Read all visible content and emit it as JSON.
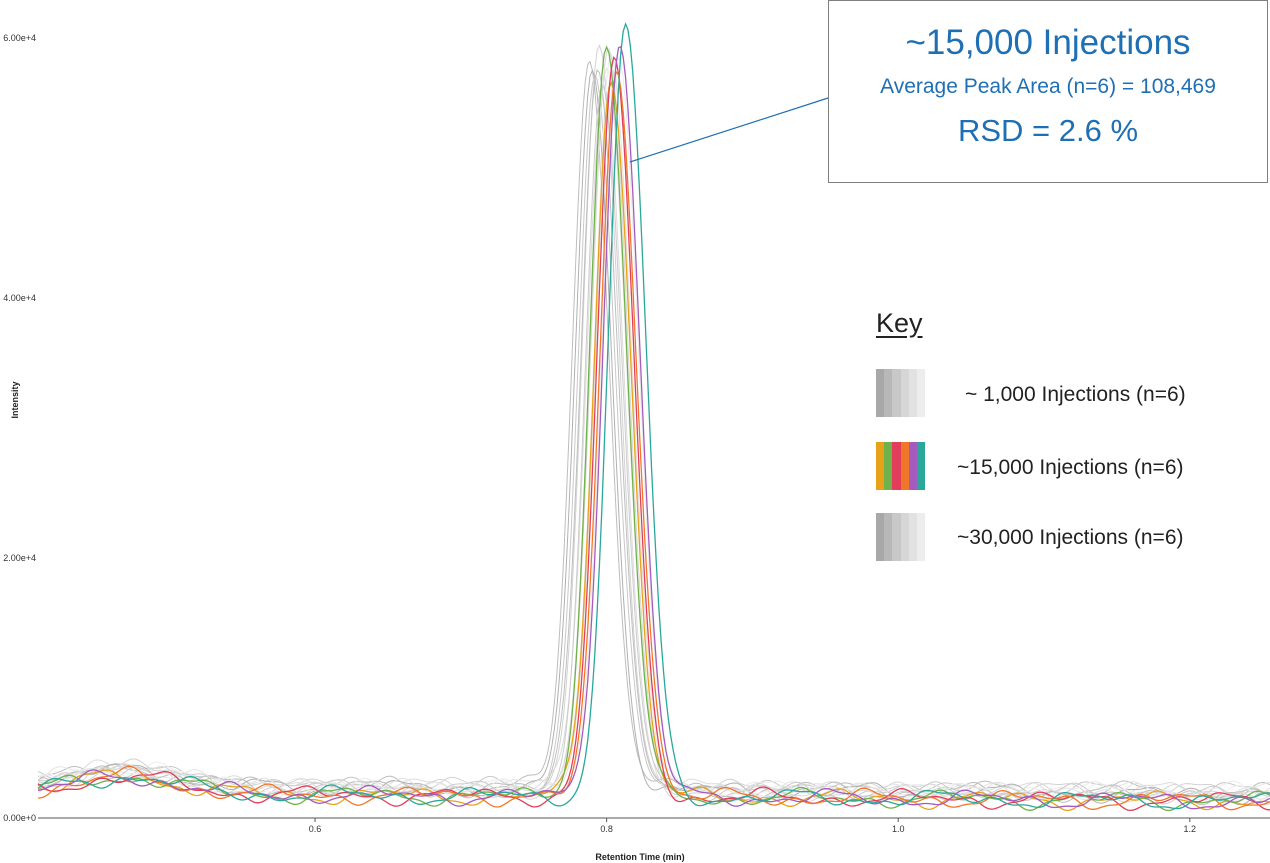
{
  "chart_data": {
    "type": "line",
    "title": "",
    "xlabel": "Retention Time (min)",
    "ylabel": "Intensity",
    "xlim": [
      0.41,
      1.255
    ],
    "ylim": [
      0,
      60000
    ],
    "x_ticks": [
      0.6,
      0.8,
      1.0,
      1.2
    ],
    "x_tick_labels": [
      "0.6",
      "0.8",
      "1.0",
      "1.2"
    ],
    "y_ticks": [
      0,
      20000,
      40000,
      60000
    ],
    "y_tick_labels": [
      "0.00e+0",
      "2.00e+4",
      "4.00e+4",
      "6.00e+4"
    ],
    "grid": false,
    "legend_position": "right",
    "groups": [
      {
        "name": "~ 1,000 Injections (n=6)",
        "colors": [
          "#bdbdbd",
          "#c8c8c8",
          "#d2d2d2",
          "#dcdcdc",
          "#e4e4e4",
          "#ececec"
        ],
        "peak_centers": [
          0.788,
          0.792,
          0.795,
          0.798,
          0.8,
          0.803
        ],
        "peak_heights": [
          56000,
          55000,
          56500,
          54500,
          55500,
          56000
        ],
        "baseline": 2600
      },
      {
        "name": "~15,000 Injections (n=6)",
        "colors": [
          "#e8a21a",
          "#6fb24b",
          "#e23d5a",
          "#f0772a",
          "#a35bc0",
          "#2aa79b"
        ],
        "peak_centers": [
          0.803,
          0.8,
          0.805,
          0.807,
          0.809,
          0.813
        ],
        "peak_heights": [
          55500,
          57800,
          56500,
          55800,
          58000,
          59500
        ],
        "baseline": 1900
      },
      {
        "name": "~30,000 Injections (n=6)",
        "colors": [
          "#b0b0b0",
          "#bebebe",
          "#cbcbcb",
          "#d7d7d7",
          "#e2e2e2",
          "#ebebeb"
        ],
        "peak_centers": [
          0.79,
          0.794,
          0.797,
          0.801,
          0.804,
          0.808
        ],
        "peak_heights": [
          55000,
          56000,
          54000,
          57000,
          55500,
          56500
        ],
        "baseline": 2400
      }
    ],
    "annotation": {
      "title": "~15,000 Injections",
      "average": "Average Peak Area (n=6) = 108,469",
      "rsd": "RSD = 2.6 %",
      "points_to": {
        "x": 0.816,
        "y": 52000
      },
      "color": "#1f6fb4"
    },
    "key": {
      "title": "Key",
      "items": [
        {
          "label": "~ 1,000 Injections (n=6)",
          "swatch": [
            "#a8a8a8",
            "#b8b8b8",
            "#c8c8c8",
            "#d6d6d6",
            "#e2e2e2",
            "#ededed"
          ]
        },
        {
          "label": "~15,000 Injections (n=6)",
          "swatch": [
            "#e8a21a",
            "#6fb24b",
            "#e23d5a",
            "#f0772a",
            "#a35bc0",
            "#2aa79b"
          ]
        },
        {
          "label": "~30,000 Injections (n=6)",
          "swatch": [
            "#a8a8a8",
            "#b8b8b8",
            "#c8c8c8",
            "#d6d6d6",
            "#e2e2e2",
            "#ededed"
          ]
        }
      ]
    }
  }
}
